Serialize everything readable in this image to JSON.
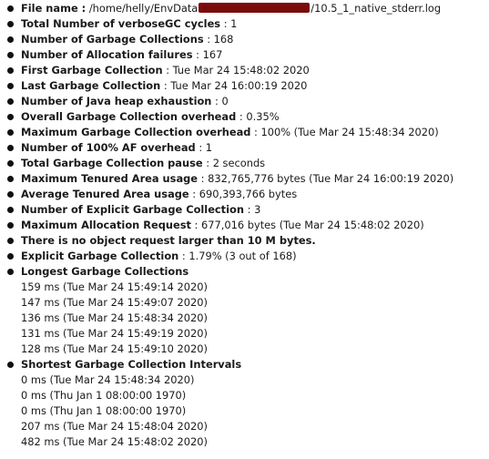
{
  "file": {
    "label": "File name :",
    "path_prefix": " /home/helly/EnvData",
    "path_suffix": "/10.5_1_native_stderr.log"
  },
  "stats": [
    {
      "label": "Total Number of verboseGC cycles",
      "value": " : 1"
    },
    {
      "label": "Number of Garbage Collections",
      "value": " : 168"
    },
    {
      "label": "Number of Allocation failures",
      "value": " : 167"
    },
    {
      "label": "First Garbage Collection",
      "value": " : Tue Mar 24 15:48:02 2020"
    },
    {
      "label": "Last Garbage Collection",
      "value": " : Tue Mar 24 16:00:19 2020"
    },
    {
      "label": "Number of  Java heap exhaustion",
      "value": " : 0"
    },
    {
      "label": "Overall Garbage Collection overhead",
      "value": " : 0.35%"
    },
    {
      "label": "Maximum Garbage Collection overhead",
      "value": " : 100% (Tue Mar 24 15:48:34 2020)"
    },
    {
      "label": "Number of 100% AF overhead",
      "value": " : 1"
    },
    {
      "label": "Total Garbage Collection pause",
      "value": " : 2 seconds"
    },
    {
      "label": "Maximum Tenured Area usage",
      "value": " : 832,765,776 bytes (Tue Mar 24 16:00:19 2020)"
    },
    {
      "label": "Average Tenured Area usage",
      "value": " : 690,393,766 bytes"
    },
    {
      "label": "Number of Explicit Garbage Collection",
      "value": " : 3"
    },
    {
      "label": "Maximum Allocation Request",
      "value": " : 677,016 bytes (Tue Mar 24 15:48:02 2020)"
    },
    {
      "label": "There is no object request larger than 10 M bytes.",
      "value": ""
    },
    {
      "label": "Explicit Garbage Collection",
      "value": " : 1.79% (3 out of 168)"
    }
  ],
  "longest": {
    "title": "Longest Garbage Collections",
    "items": [
      "159 ms (Tue Mar 24 15:49:14 2020)",
      "147 ms (Tue Mar 24 15:49:07 2020)",
      "136 ms (Tue Mar 24 15:48:34 2020)",
      "131 ms (Tue Mar 24 15:49:19 2020)",
      "128 ms (Tue Mar 24 15:49:10 2020)"
    ]
  },
  "shortest": {
    "title": "Shortest Garbage Collection Intervals",
    "items": [
      "0 ms (Tue Mar 24 15:48:34 2020)",
      "0 ms (Thu Jan 1 08:00:00 1970)",
      "0 ms (Thu Jan 1 08:00:00 1970)",
      "207 ms (Tue Mar 24 15:48:04 2020)",
      "482 ms (Tue Mar 24 15:48:02 2020)"
    ]
  },
  "colors": {
    "redaction": "#7a0c0c",
    "text": "#1a1a1a",
    "background": "#ffffff"
  }
}
